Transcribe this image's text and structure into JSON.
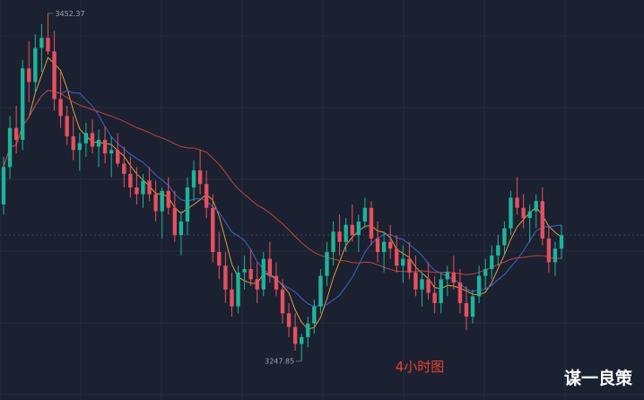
{
  "chart_data": {
    "type": "candlestick",
    "period_label": "4小时图",
    "watermark": "谋一良策",
    "high_marker": "3452.37",
    "low_marker": "3247.85",
    "high_value": 3452.37,
    "low_value": 3247.85,
    "ylim": [
      3244,
      3456
    ],
    "grid": true,
    "colors": {
      "background": "#1b2130",
      "grid": "#262d3c",
      "up": "#1fb39a",
      "down": "#e5505f",
      "ma_orange": "#e09c3b",
      "ma_blue": "#3f64c9",
      "ma_red": "#c0433d",
      "current_price_line": "#3a4358",
      "period_label": "#e8412f",
      "watermark": "#ffffff"
    },
    "candles": [
      [
        3340,
        3368,
        3334,
        3362
      ],
      [
        3362,
        3392,
        3355,
        3385
      ],
      [
        3385,
        3398,
        3370,
        3378
      ],
      [
        3378,
        3425,
        3372,
        3420
      ],
      [
        3420,
        3436,
        3400,
        3412
      ],
      [
        3412,
        3440,
        3405,
        3432
      ],
      [
        3432,
        3446,
        3418,
        3438
      ],
      [
        3438,
        3452.37,
        3428,
        3430
      ],
      [
        3430,
        3442,
        3395,
        3402
      ],
      [
        3402,
        3418,
        3385,
        3392
      ],
      [
        3392,
        3398,
        3375,
        3380
      ],
      [
        3380,
        3392,
        3366,
        3372
      ],
      [
        3372,
        3382,
        3360,
        3376
      ],
      [
        3376,
        3388,
        3368,
        3382
      ],
      [
        3382,
        3390,
        3370,
        3374
      ],
      [
        3374,
        3384,
        3362,
        3378
      ],
      [
        3378,
        3386,
        3364,
        3370
      ],
      [
        3370,
        3380,
        3356,
        3372
      ],
      [
        3372,
        3382,
        3362,
        3364
      ],
      [
        3364,
        3374,
        3350,
        3358
      ],
      [
        3358,
        3368,
        3344,
        3350
      ],
      [
        3350,
        3362,
        3340,
        3346
      ],
      [
        3346,
        3358,
        3338,
        3354
      ],
      [
        3354,
        3362,
        3342,
        3346
      ],
      [
        3346,
        3354,
        3330,
        3336
      ],
      [
        3336,
        3350,
        3320,
        3348
      ],
      [
        3348,
        3356,
        3334,
        3338
      ],
      [
        3338,
        3348,
        3318,
        3322
      ],
      [
        3322,
        3336,
        3310,
        3330
      ],
      [
        3330,
        3356,
        3322,
        3350
      ],
      [
        3350,
        3366,
        3342,
        3360
      ],
      [
        3360,
        3372,
        3346,
        3352
      ],
      [
        3352,
        3360,
        3332,
        3338
      ],
      [
        3338,
        3346,
        3306,
        3312
      ],
      [
        3312,
        3324,
        3296,
        3304
      ],
      [
        3304,
        3312,
        3282,
        3290
      ],
      [
        3290,
        3300,
        3274,
        3280
      ],
      [
        3280,
        3304,
        3276,
        3300
      ],
      [
        3300,
        3310,
        3290,
        3302
      ],
      [
        3302,
        3314,
        3292,
        3296
      ],
      [
        3296,
        3306,
        3282,
        3290
      ],
      [
        3290,
        3312,
        3286,
        3308
      ],
      [
        3308,
        3318,
        3294,
        3298
      ],
      [
        3298,
        3306,
        3286,
        3290
      ],
      [
        3290,
        3296,
        3270,
        3276
      ],
      [
        3276,
        3282,
        3262,
        3268
      ],
      [
        3268,
        3276,
        3254,
        3258
      ],
      [
        3258,
        3264,
        3247.85,
        3262
      ],
      [
        3262,
        3274,
        3256,
        3270
      ],
      [
        3270,
        3284,
        3264,
        3280
      ],
      [
        3280,
        3302,
        3276,
        3298
      ],
      [
        3298,
        3318,
        3292,
        3312
      ],
      [
        3312,
        3330,
        3304,
        3324
      ],
      [
        3324,
        3334,
        3310,
        3318
      ],
      [
        3318,
        3332,
        3312,
        3328
      ],
      [
        3328,
        3340,
        3318,
        3322
      ],
      [
        3322,
        3334,
        3312,
        3330
      ],
      [
        3330,
        3344,
        3326,
        3338
      ],
      [
        3338,
        3342,
        3316,
        3320
      ],
      [
        3320,
        3330,
        3306,
        3312
      ],
      [
        3312,
        3324,
        3300,
        3318
      ],
      [
        3318,
        3328,
        3308,
        3314
      ],
      [
        3314,
        3322,
        3300,
        3304
      ],
      [
        3304,
        3316,
        3294,
        3308
      ],
      [
        3308,
        3318,
        3296,
        3300
      ],
      [
        3300,
        3310,
        3286,
        3290
      ],
      [
        3290,
        3300,
        3280,
        3296
      ],
      [
        3296,
        3306,
        3284,
        3288
      ],
      [
        3288,
        3298,
        3276,
        3282
      ],
      [
        3282,
        3300,
        3276,
        3296
      ],
      [
        3296,
        3304,
        3286,
        3300
      ],
      [
        3300,
        3310,
        3290,
        3294
      ],
      [
        3294,
        3302,
        3276,
        3282
      ],
      [
        3282,
        3292,
        3266,
        3274
      ],
      [
        3274,
        3290,
        3270,
        3286
      ],
      [
        3286,
        3304,
        3282,
        3298
      ],
      [
        3298,
        3308,
        3290,
        3302
      ],
      [
        3302,
        3316,
        3296,
        3310
      ],
      [
        3310,
        3322,
        3304,
        3316
      ],
      [
        3316,
        3330,
        3310,
        3326
      ],
      [
        3326,
        3348,
        3322,
        3344
      ],
      [
        3344,
        3356,
        3334,
        3338
      ],
      [
        3338,
        3346,
        3326,
        3332
      ],
      [
        3332,
        3340,
        3318,
        3336
      ],
      [
        3336,
        3346,
        3326,
        3342
      ],
      [
        3342,
        3350,
        3316,
        3320
      ],
      [
        3320,
        3328,
        3300,
        3306
      ],
      [
        3306,
        3318,
        3298,
        3314
      ],
      [
        3314,
        3328,
        3308,
        3322
      ]
    ]
  }
}
